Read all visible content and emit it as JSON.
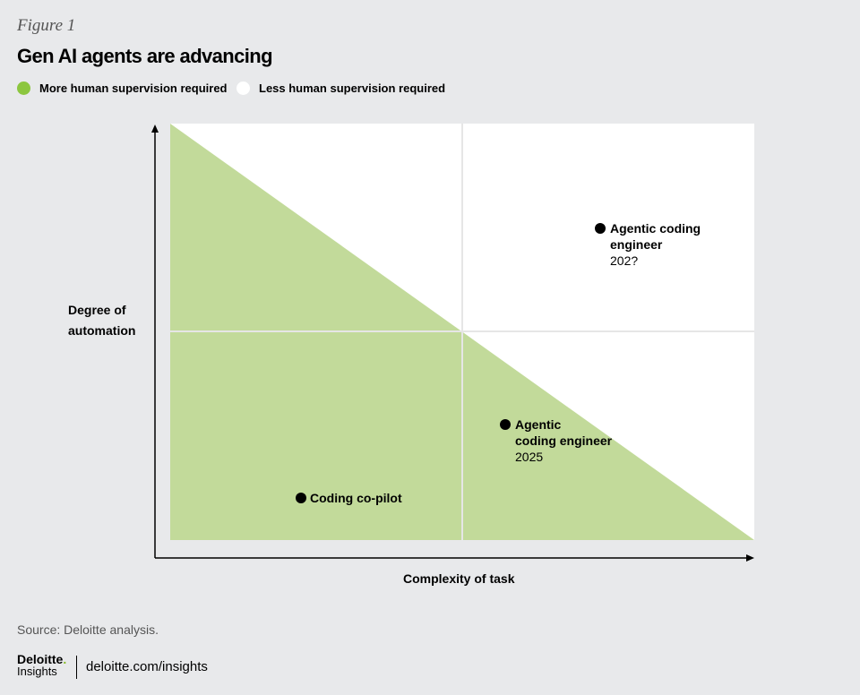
{
  "header": {
    "figure_label": "Figure 1",
    "title": "Gen AI agents are advancing"
  },
  "legend": [
    {
      "label": "More human supervision required",
      "color": "#8cc63f"
    },
    {
      "label": "Less human supervision required",
      "color": "#ffffff"
    }
  ],
  "axes": {
    "y_label_line1": "Degree of",
    "y_label_line2": "automation",
    "x_label": "Complexity of task"
  },
  "colors": {
    "more_supervision_region": "#c2da9a",
    "less_supervision_region": "#ffffff",
    "gridline": "#e0e0e0",
    "point": "#000000"
  },
  "points": [
    {
      "name": "Coding co-pilot",
      "year": ""
    },
    {
      "name_line1": "Agentic",
      "name_line2": "coding engineer",
      "year": "2025"
    },
    {
      "name_line1": "Agentic coding",
      "name_line2": "engineer",
      "year": "202?"
    }
  ],
  "footer": {
    "source": "Source: Deloitte analysis.",
    "logo_word": "Deloitte",
    "logo_sub": "Insights",
    "url": "deloitte.com/insights"
  }
}
